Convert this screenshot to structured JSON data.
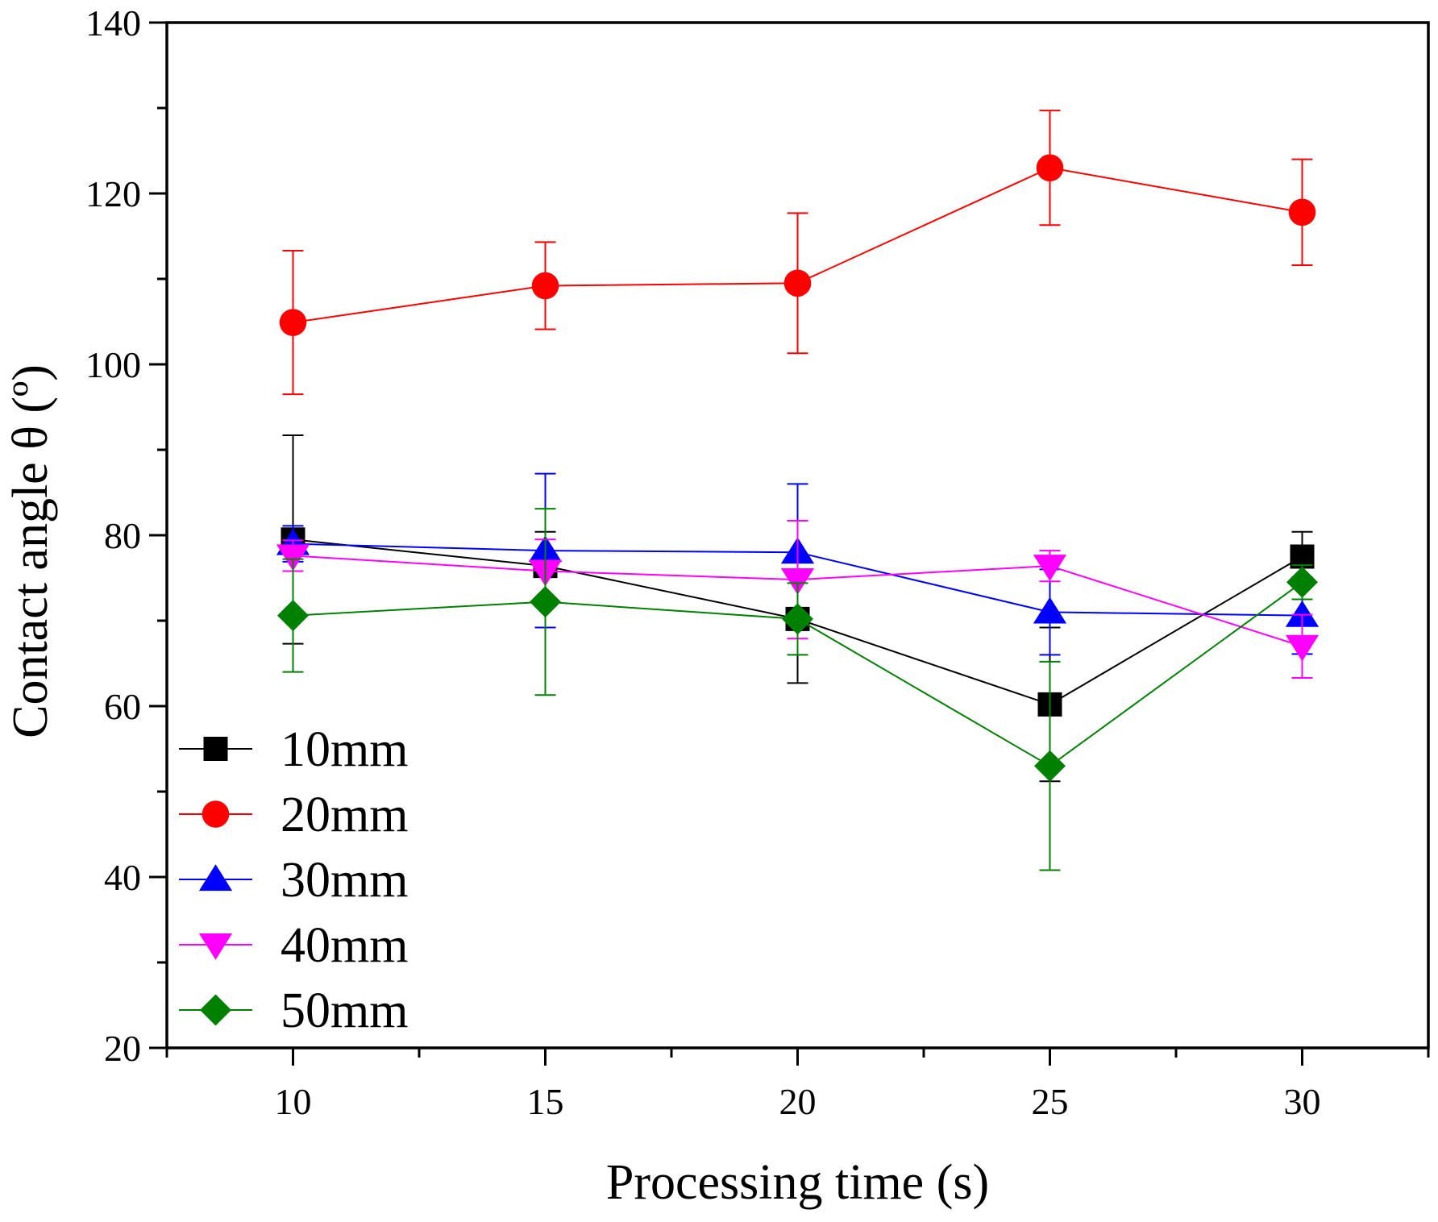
{
  "chart_data": {
    "type": "line",
    "title": "",
    "xlabel": "Processing time (s)",
    "ylabel": "Contact angle θ (º)",
    "xlim": [
      7.5,
      32.5
    ],
    "ylim": [
      20,
      140
    ],
    "xticks": [
      10,
      15,
      20,
      25,
      30
    ],
    "yticks": [
      20,
      40,
      60,
      80,
      100,
      120,
      140
    ],
    "x": [
      10,
      15,
      20,
      25,
      30
    ],
    "legend_position": "bottom-left",
    "grid": false,
    "series": [
      {
        "name": "10mm",
        "color": "#000000",
        "marker": "square",
        "values": [
          79.5,
          76.4,
          70.2,
          60.2,
          77.5
        ],
        "errors": [
          12.2,
          4.0,
          7.5,
          9.0,
          2.9
        ]
      },
      {
        "name": "20mm",
        "color": "#ff0000",
        "marker": "circle",
        "values": [
          104.9,
          109.2,
          109.5,
          123.0,
          117.8
        ],
        "errors": [
          8.4,
          5.1,
          8.2,
          6.7,
          6.2
        ]
      },
      {
        "name": "30mm",
        "color": "#0000ff",
        "marker": "triangle-up",
        "values": [
          79.0,
          78.2,
          78.0,
          71.0,
          70.6
        ],
        "errors": [
          2.1,
          9.0,
          8.0,
          5.0,
          4.5
        ]
      },
      {
        "name": "40mm",
        "color": "#ff00ff",
        "marker": "triangle-down",
        "values": [
          77.6,
          75.8,
          74.8,
          76.4,
          67.0
        ],
        "errors": [
          1.8,
          3.7,
          6.9,
          1.8,
          3.7
        ]
      },
      {
        "name": "50mm",
        "color": "#008000",
        "marker": "diamond",
        "values": [
          70.6,
          72.2,
          70.2,
          53.0,
          74.5
        ],
        "errors": [
          6.6,
          10.9,
          4.2,
          12.2,
          2.0
        ]
      }
    ]
  }
}
